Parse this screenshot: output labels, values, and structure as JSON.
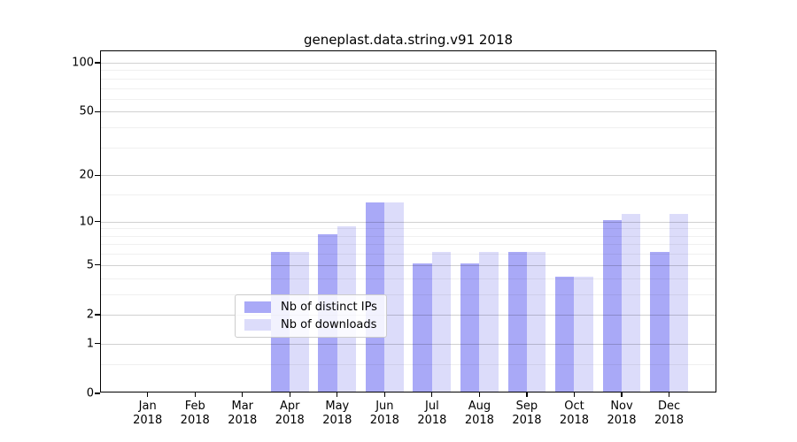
{
  "title": "geneplast.data.string.v91 2018",
  "colors": {
    "ips": "#a9a9f7",
    "downloads": "#dcdcfa",
    "grid_major": "rgba(0,0,0,0.18)",
    "grid_minor": "rgba(0,0,0,0.06)",
    "axis": "#000000",
    "background": "#ffffff"
  },
  "legend": {
    "items": [
      {
        "label": "Nb of distinct IPs",
        "color_key": "ips"
      },
      {
        "label": "Nb of downloads",
        "color_key": "downloads"
      }
    ]
  },
  "chart_data": {
    "type": "bar",
    "title": "geneplast.data.string.v91 2018",
    "categories": [
      "Jan 2018",
      "Feb 2018",
      "Mar 2018",
      "Apr 2018",
      "May 2018",
      "Jun 2018",
      "Jul 2018",
      "Aug 2018",
      "Sep 2018",
      "Oct 2018",
      "Nov 2018",
      "Dec 2018"
    ],
    "series": [
      {
        "name": "Nb of distinct IPs",
        "color_key": "ips",
        "values": [
          0,
          0,
          0,
          6,
          8,
          13,
          5,
          5,
          6,
          4,
          10,
          6
        ]
      },
      {
        "name": "Nb of downloads",
        "color_key": "downloads",
        "values": [
          0,
          0,
          0,
          6,
          9,
          13,
          6,
          6,
          6,
          4,
          11,
          11
        ]
      }
    ],
    "xlabel": "",
    "ylabel": "",
    "ylim": [
      0,
      100
    ],
    "y_scale": "log10(1+v)",
    "y_ticks": [
      0,
      1,
      2,
      5,
      10,
      20,
      50,
      100
    ],
    "y_minor_ticks": [
      0.5,
      3,
      4,
      6,
      7,
      8,
      9,
      15,
      30,
      40,
      60,
      70,
      80,
      90
    ],
    "grid": true,
    "legend_position": "lower center"
  }
}
